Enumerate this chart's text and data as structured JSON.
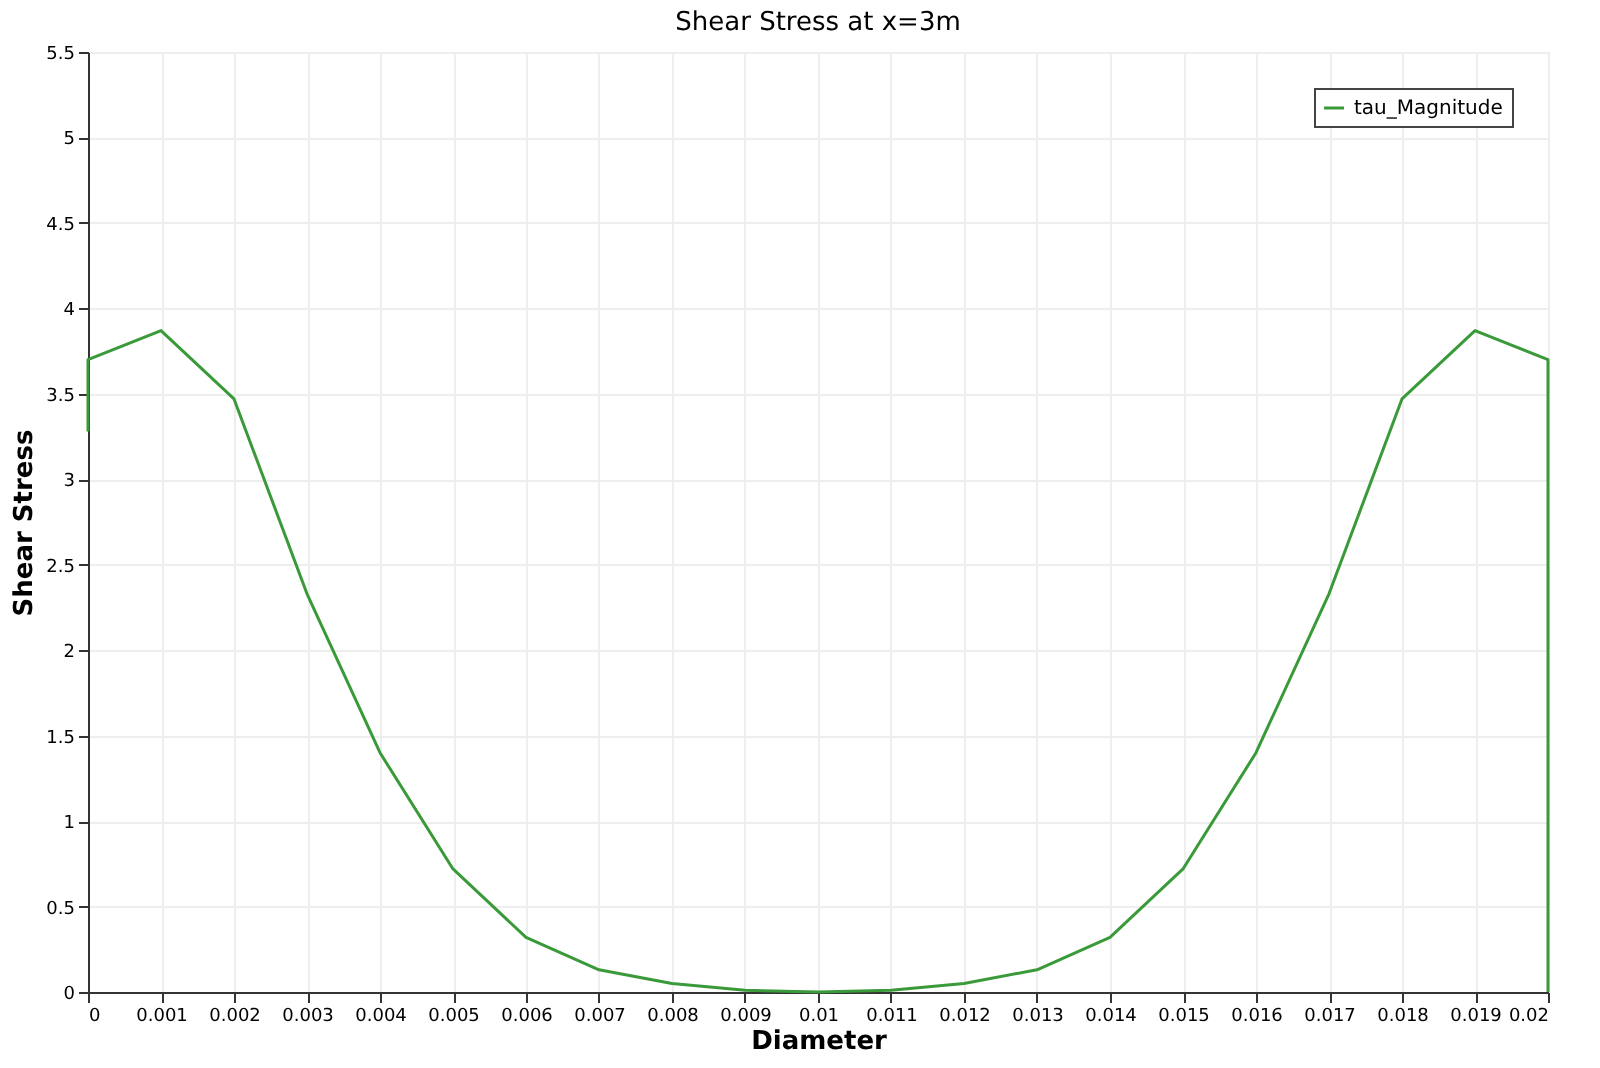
{
  "chart_data": {
    "type": "line",
    "title": "Shear Stress at x=3m",
    "xlabel": "Diameter",
    "ylabel": "Shear Stress",
    "x": [
      0,
      0,
      0.001,
      0.002,
      0.003,
      0.004,
      0.005,
      0.006,
      0.007,
      0.008,
      0.009,
      0.01,
      0.011,
      0.012,
      0.013,
      0.014,
      0.015,
      0.016,
      0.017,
      0.018,
      0.019,
      0.02,
      0.02
    ],
    "series": [
      {
        "name": "tau_Magnitude",
        "color": "#3a9a3a",
        "values": [
          3.28,
          3.7,
          3.87,
          3.47,
          2.33,
          1.4,
          0.72,
          0.32,
          0.13,
          0.05,
          0.01,
          0,
          0.01,
          0.05,
          0.13,
          0.32,
          0.72,
          1.4,
          2.33,
          3.47,
          3.87,
          3.7,
          0
        ]
      }
    ],
    "xlim": [
      0,
      0.02
    ],
    "xticks": [
      0,
      0.001,
      0.002,
      0.003,
      0.004,
      0.005,
      0.006,
      0.007,
      0.008,
      0.009,
      0.01,
      0.011,
      0.012,
      0.013,
      0.014,
      0.015,
      0.016,
      0.017,
      0.018,
      0.019,
      0.02
    ],
    "ylim": [
      0,
      5.5
    ],
    "yticks": [
      0,
      0.5,
      1,
      1.5,
      2,
      2.5,
      3,
      3.5,
      4,
      4.5,
      5,
      5.5
    ],
    "grid": true,
    "legend": "top right",
    "marker": "none",
    "line_style": "solid"
  }
}
